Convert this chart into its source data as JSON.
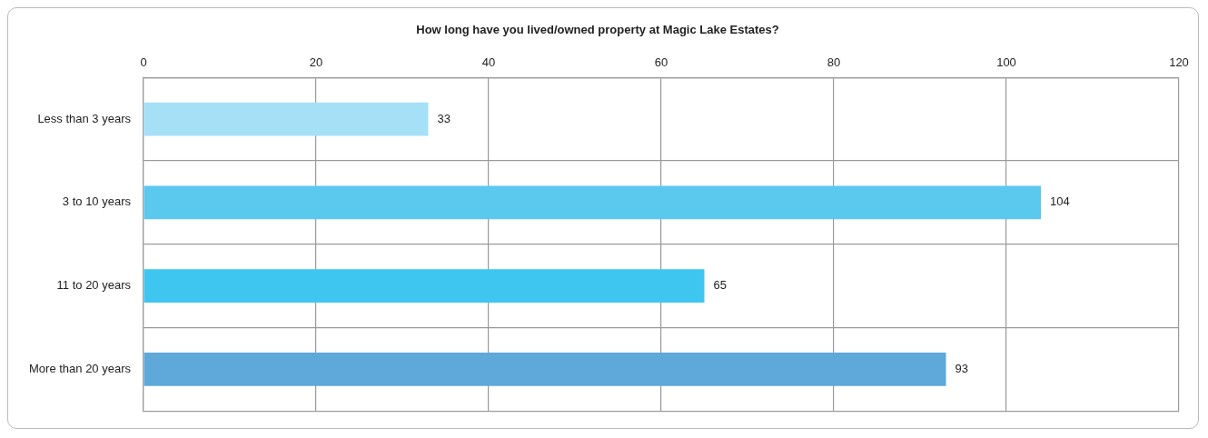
{
  "chart_data": {
    "type": "bar",
    "orientation": "horizontal",
    "title": "How long have you lived/owned property at Magic Lake Estates?",
    "categories": [
      "Less than 3 years",
      "3 to 10 years",
      "11 to 20 years",
      "More than 20 years"
    ],
    "values": [
      33,
      104,
      65,
      93
    ],
    "colors": [
      "#a6e0f7",
      "#5bc8ee",
      "#3ec6f1",
      "#5fa8da"
    ],
    "xlim": [
      0,
      120
    ],
    "xticks": [
      0,
      20,
      40,
      60,
      80,
      100,
      120
    ],
    "grid": true,
    "data_labels": true,
    "legend": false
  }
}
